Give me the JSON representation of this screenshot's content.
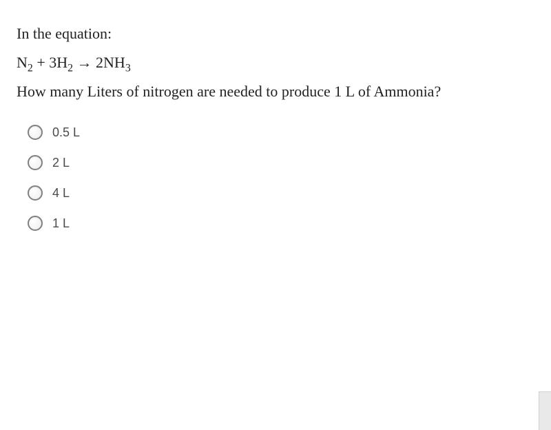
{
  "question": {
    "intro": "In the equation:",
    "equation_parts": {
      "n2_base": "N",
      "n2_sub": "2",
      "plus": " + 3H",
      "h2_sub": "2",
      "arrow": " → ",
      "nh3_coef": "2NH",
      "nh3_sub": "3"
    },
    "prompt": "How many Liters of nitrogen are needed to produce 1 L of Ammonia?"
  },
  "options": [
    {
      "label": "0.5 L"
    },
    {
      "label": "2 L"
    },
    {
      "label": "4 L"
    },
    {
      "label": "1 L"
    }
  ],
  "styling": {
    "question_fontsize": 22,
    "option_fontsize": 18,
    "text_color": "#222222",
    "option_text_color": "#4a4a4a",
    "radio_border_color": "#808080",
    "background_color": "#ffffff"
  }
}
